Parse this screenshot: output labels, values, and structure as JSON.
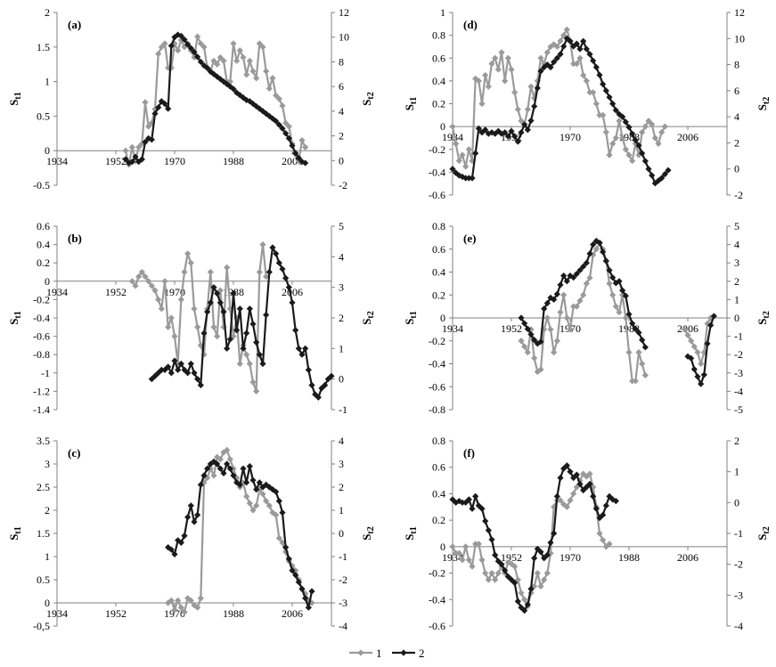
{
  "colors": {
    "series1": "#9a9a9a",
    "series2": "#1a1a1a",
    "axis": "#808080"
  },
  "legend": [
    {
      "name": "1"
    },
    {
      "name": "2"
    }
  ],
  "chart_data": [
    {
      "panel": "(a)",
      "type": "line",
      "ylabel": "St1",
      "y2label": "St2",
      "xlim": [
        1934,
        2018
      ],
      "xticks": [
        1934,
        1952,
        1970,
        1988,
        2006
      ],
      "ylim": [
        -0.5,
        2
      ],
      "yticks": [
        "-0.5",
        "0",
        "0.5",
        "1",
        "1.5",
        "2"
      ],
      "y2lim": [
        -2,
        12
      ],
      "y2ticks": [
        "-2",
        "0",
        "2",
        "4",
        "6",
        "8",
        "10",
        "12"
      ],
      "s1x0": 1955,
      "s1": [
        0,
        -0.2,
        0.05,
        -0.15,
        0.05,
        0.1,
        0.7,
        0.35,
        0.4,
        0.6,
        1.4,
        1.5,
        1.55,
        1.2,
        1.2,
        1.55,
        1.45,
        1.6,
        1.5,
        1.55,
        1.45,
        1.35,
        1.65,
        1.55,
        1.5,
        1.2,
        1.15,
        1.3,
        1.25,
        1.35,
        1.3,
        1.0,
        1.0,
        1.55,
        1.3,
        1.45,
        1.35,
        1.1,
        1.3,
        1.15,
        1.05,
        1.55,
        1.5,
        1.15,
        0.9,
        1.05,
        0.8,
        0.75,
        0.65,
        0.4,
        0.35,
        0.1,
        -0.05,
        -0.15,
        0.15,
        0.05
      ],
      "s2x0": 1955,
      "s2": [
        0.1,
        -0.2,
        -0.1,
        0.3,
        -0.1,
        0.1,
        1.5,
        1.8,
        1.7,
        3.8,
        4.3,
        4.8,
        4.6,
        4.2,
        9.3,
        10.0,
        10.2,
        10.1,
        9.8,
        9.4,
        9.1,
        8.8,
        8.4,
        8.0,
        7.7,
        7.5,
        7.2,
        7.0,
        6.8,
        6.6,
        6.4,
        6.2,
        6.0,
        5.8,
        5.5,
        5.3,
        5.1,
        4.9,
        4.8,
        4.6,
        4.4,
        4.2,
        4.0,
        3.8,
        3.6,
        3.4,
        3.2,
        2.9,
        2.6,
        2.2,
        1.8,
        1.2,
        0.6,
        0.2,
        -0.1,
        -0.2
      ]
    },
    {
      "panel": "(b)",
      "type": "line",
      "ylabel": "St1",
      "y2label": "St2",
      "xlim": [
        1934,
        2018
      ],
      "xticks": [
        1934,
        1952,
        1970,
        1988,
        2006
      ],
      "ylim": [
        -1.4,
        0.6
      ],
      "yticks": [
        "-1.4",
        "-1.2",
        "-1",
        "-0.8",
        "-0.6",
        "-0.4",
        "-0.2",
        "0",
        "0.2",
        "0.4",
        "0.6"
      ],
      "y2lim": [
        -1,
        5
      ],
      "y2ticks": [
        "-1",
        "0",
        "1",
        "2",
        "3",
        "4",
        "5"
      ],
      "s1x0": 1957,
      "s1": [
        0,
        -0.05,
        0.05,
        0.1,
        0.05,
        0,
        -0.05,
        -0.1,
        -0.2,
        -0.3,
        0,
        -0.5,
        -0.4,
        -0.6,
        -0.9,
        -0.2,
        0.1,
        0.3,
        0.2,
        -0.3,
        -0.5,
        -0.7,
        -0.8,
        -0.3,
        0.1,
        -0.5,
        -0.6,
        -0.1,
        -0.5,
        0.15,
        -0.3,
        -0.6,
        -0.4,
        -0.9,
        -0.7,
        -0.8,
        -0.9,
        -1.1,
        -1.2,
        0.1,
        0.4,
        0.05
      ],
      "s2x0": 1963,
      "s2": [
        0,
        0.1,
        0.2,
        0.3,
        0.3,
        0.4,
        0.2,
        0.6,
        0.3,
        0.5,
        0.3,
        0.2,
        0.5,
        0.2,
        0.0,
        -0.2,
        1.5,
        2.2,
        2.5,
        3.0,
        2.8,
        2.5,
        2.2,
        1.0,
        1.3,
        2.8,
        1.6,
        2.3,
        1.0,
        1.5,
        2.3,
        1.8,
        1.2,
        0.8,
        0.5,
        2.1,
        3.5,
        4.3,
        4.1,
        3.8,
        3.6,
        3.3,
        3.0,
        2.5,
        1.6,
        1.0,
        0.8,
        1.0,
        0.3,
        -0.2,
        -0.5,
        -0.6,
        -0.3,
        -0.2,
        0,
        0.1
      ]
    },
    {
      "panel": "(c)",
      "type": "line",
      "ylabel": "St1",
      "y2label": "St2",
      "xlim": [
        1934,
        2018
      ],
      "xticks": [
        1934,
        1952,
        1970,
        1988,
        2006
      ],
      "ylim": [
        -0.5,
        3.5
      ],
      "yticks": [
        "-0,5",
        "0",
        "0.5",
        "1",
        "1.5",
        "2",
        "2.5",
        "3",
        "3.5"
      ],
      "y2lim": [
        -4,
        4
      ],
      "y2ticks": [
        "-4",
        "-3",
        "-2",
        "-1",
        "0",
        "1",
        "2",
        "3",
        "4"
      ],
      "s1x0": 1968,
      "s1": [
        0,
        0.05,
        -0.15,
        0.05,
        -0.1,
        -0.2,
        0.1,
        0.05,
        -0.05,
        -0.1,
        0.1,
        2.6,
        2.7,
        2.9,
        2.75,
        3.15,
        3.1,
        3.25,
        3.3,
        3.1,
        2.9,
        2.7,
        2.5,
        2.6,
        2.3,
        2.15,
        2.0,
        2.1,
        2.45,
        2.35,
        2.2,
        2.1,
        1.95,
        1.9,
        1.4,
        1.3,
        1.1,
        0.9,
        0.8,
        0.7,
        0.5,
        0.3,
        0.2,
        0.05,
        0.0
      ],
      "s2x0": 1968,
      "s2": [
        -0.6,
        -0.7,
        -0.9,
        -0.3,
        -0.4,
        -0.1,
        0.7,
        1.2,
        0.5,
        0.8,
        2.1,
        2.5,
        2.8,
        3.0,
        3.1,
        3.0,
        2.8,
        2.6,
        3.0,
        2.8,
        2.5,
        2.2,
        2.1,
        2.8,
        2.2,
        2.9,
        2.3,
        1.9,
        2.2,
        2.0,
        2.1,
        2.0,
        1.9,
        1.8,
        1.4,
        0.9,
        -0.6,
        -1.1,
        -1.6,
        -1.8,
        -2.1,
        -2.4,
        -2.8,
        -3.2,
        -2.5
      ]
    },
    {
      "panel": "(d)",
      "type": "line",
      "ylabel": "St1",
      "y2label": "St2",
      "xlim": [
        1934,
        2018
      ],
      "xticks": [
        1934,
        1952,
        1970,
        1988,
        2006
      ],
      "ylim": [
        -0.6,
        1
      ],
      "yticks": [
        "-0.6",
        "-0.4",
        "-0.2",
        "0",
        "0.2",
        "0.4",
        "0.6",
        "0.8",
        "1"
      ],
      "y2lim": [
        -2,
        12
      ],
      "y2ticks": [
        "-2",
        "0",
        "2",
        "4",
        "6",
        "8",
        "10",
        "12"
      ],
      "s1x0": 1934,
      "s1": [
        0,
        -0.15,
        -0.3,
        -0.25,
        -0.35,
        -0.2,
        -0.3,
        0.42,
        0.4,
        0.2,
        0.45,
        0.35,
        0.55,
        0.6,
        0.5,
        0.65,
        0.4,
        0.6,
        0.5,
        0.3,
        0.15,
        0.05,
        0.02,
        0.15,
        0.35,
        0.25,
        0.4,
        0.6,
        0.55,
        0.65,
        0.7,
        0.72,
        0.7,
        0.75,
        0.8,
        0.85,
        0.75,
        0.55,
        0.55,
        0.6,
        0.45,
        0.4,
        0.3,
        0.3,
        0.2,
        0.1,
        0.1,
        -0.05,
        -0.25,
        -0.15,
        -0.1,
        0.05,
        -0.1,
        -0.2,
        -0.25,
        -0.3,
        -0.15,
        -0.25,
        -0.05,
        0,
        0.05,
        0.02,
        -0.1,
        -0.15,
        -0.05,
        0.0
      ],
      "s2x0": 1934,
      "s2": [
        0,
        -0.3,
        -0.5,
        -0.6,
        -0.7,
        -0.7,
        -0.7,
        1.2,
        3.1,
        2.8,
        3.0,
        2.7,
        2.8,
        2.7,
        2.9,
        2.7,
        2.8,
        2.5,
        2.9,
        2.5,
        2.1,
        2.8,
        3.4,
        3.0,
        3.7,
        4.8,
        6.2,
        7.5,
        7.8,
        8.0,
        7.8,
        8.2,
        8.5,
        8.8,
        9.4,
        10.0,
        9.8,
        9.4,
        9.6,
        9.2,
        9.8,
        9.2,
        8.8,
        8.3,
        7.8,
        7.2,
        6.5,
        6.0,
        5.5,
        5.0,
        4.5,
        4.2,
        4.0,
        3.6,
        3.2,
        2.7,
        2.2,
        1.8,
        1.2,
        0.6,
        0.0,
        -0.5,
        -1.1,
        -0.9,
        -0.7,
        -0.4,
        -0.1
      ]
    },
    {
      "panel": "(e)",
      "type": "line",
      "ylabel": "St1",
      "y2label": "St2",
      "xlim": [
        1934,
        2018
      ],
      "xticks": [
        1934,
        1952,
        1970,
        1988,
        2006
      ],
      "ylim": [
        -0.8,
        0.8
      ],
      "yticks": [
        "-0.8",
        "-0.6",
        "-0.4",
        "-0.2",
        "0",
        "0.2",
        "0.4",
        "0.6",
        "0.8"
      ],
      "y2lim": [
        -5,
        5
      ],
      "y2ticks": [
        "-5",
        "-4",
        "-3",
        "-2",
        "-1",
        "0",
        "1",
        "2",
        "3",
        "4",
        "5"
      ],
      "s1x0": 1955,
      "s1": [
        -0.2,
        -0.25,
        -0.3,
        -0.1,
        -0.35,
        -0.47,
        -0.45,
        -0.1,
        0.0,
        -0.1,
        -0.3,
        -0.2,
        0.05,
        0.2,
        0.0,
        -0.1,
        0.1,
        0.1,
        0.15,
        0.2,
        0.3,
        0.35,
        0.55,
        0.6,
        0.65,
        0.6,
        0.5,
        0.3,
        0.2,
        0.1,
        0.05,
        0.2,
        0.0,
        -0.3,
        -0.55,
        -0.55,
        -0.3,
        -0.4,
        -0.5
      ],
      "s2x0": 1955,
      "s2": [
        0,
        -0.3,
        -0.6,
        -0.9,
        -1.2,
        -1.4,
        -1.3,
        0.5,
        0.8,
        1.1,
        1.0,
        1.3,
        1.8,
        2.3,
        2.0,
        2.3,
        2.2,
        2.4,
        2.6,
        2.8,
        3.0,
        3.5,
        4.0,
        4.2,
        4.1,
        3.6,
        3.1,
        2.6,
        2.2,
        1.9,
        2.0,
        1.5,
        1.2,
        0.2,
        -0.3,
        -0.6,
        -0.8,
        -1.2,
        -1.6
      ],
      "s1bx0": 2005,
      "s1b": [
        -0.1,
        -0.15,
        -0.2,
        -0.25,
        -0.3,
        -0.4,
        -0.3,
        -0.05,
        0.0
      ],
      "s2bx0": 2006,
      "s2b": [
        -2.1,
        -2.2,
        -2.8,
        -3.2,
        -3.6,
        -3.1,
        -1.4,
        -0.4,
        0.1
      ]
    },
    {
      "panel": "(f)",
      "type": "line",
      "ylabel": "St1",
      "y2label": "St2",
      "xlim": [
        1934,
        2018
      ],
      "xticks": [
        1934,
        1952,
        1970,
        1988,
        2006
      ],
      "ylim": [
        -0.6,
        0.8
      ],
      "yticks": [
        "-0.6",
        "-0.4",
        "-0.2",
        "0",
        "0.2",
        "0.4",
        "0.6",
        "0.8"
      ],
      "y2lim": [
        -4,
        2
      ],
      "y2ticks": [
        "-4",
        "-3",
        "-2",
        "-1",
        "0",
        "1",
        "2"
      ],
      "s1x0": 1934,
      "s1": [
        0,
        -0.05,
        -0.05,
        -0.1,
        0,
        -0.1,
        -0.15,
        0.02,
        0.02,
        -0.1,
        -0.2,
        -0.25,
        -0.2,
        -0.25,
        -0.2,
        -0.15,
        -0.2,
        -0.12,
        -0.13,
        -0.15,
        -0.25,
        -0.35,
        -0.4,
        -0.45,
        -0.35,
        -0.3,
        -0.2,
        -0.3,
        -0.25,
        -0.2,
        -0.05,
        0.3,
        0.35,
        0.35,
        0.32,
        0.3,
        0.35,
        0.4,
        0.45,
        0.5,
        0.55,
        0.53,
        0.55,
        0.45,
        0.3,
        0.1,
        0.05,
        0.0,
        0.02
      ],
      "s2x0": 1934,
      "s2": [
        0.1,
        0.0,
        0.05,
        0.0,
        0.0,
        0.1,
        -0.2,
        0.2,
        -0.1,
        -0.2,
        -0.6,
        -0.9,
        -1.2,
        -1.7,
        -1.9,
        -2.0,
        -2.2,
        -2.4,
        -2.5,
        -2.6,
        -3.2,
        -3.4,
        -3.5,
        -3.3,
        -2.8,
        -1.8,
        -1.5,
        -1.6,
        -1.8,
        -1.7,
        -1.3,
        -1.0,
        0.2,
        0.8,
        1.1,
        1.2,
        1.0,
        0.8,
        0.9,
        0.6,
        0.4,
        0.5,
        0.6,
        0.2,
        -0.2,
        -0.5,
        -0.4,
        -0.1,
        0.2,
        0.1,
        0.05
      ]
    }
  ]
}
